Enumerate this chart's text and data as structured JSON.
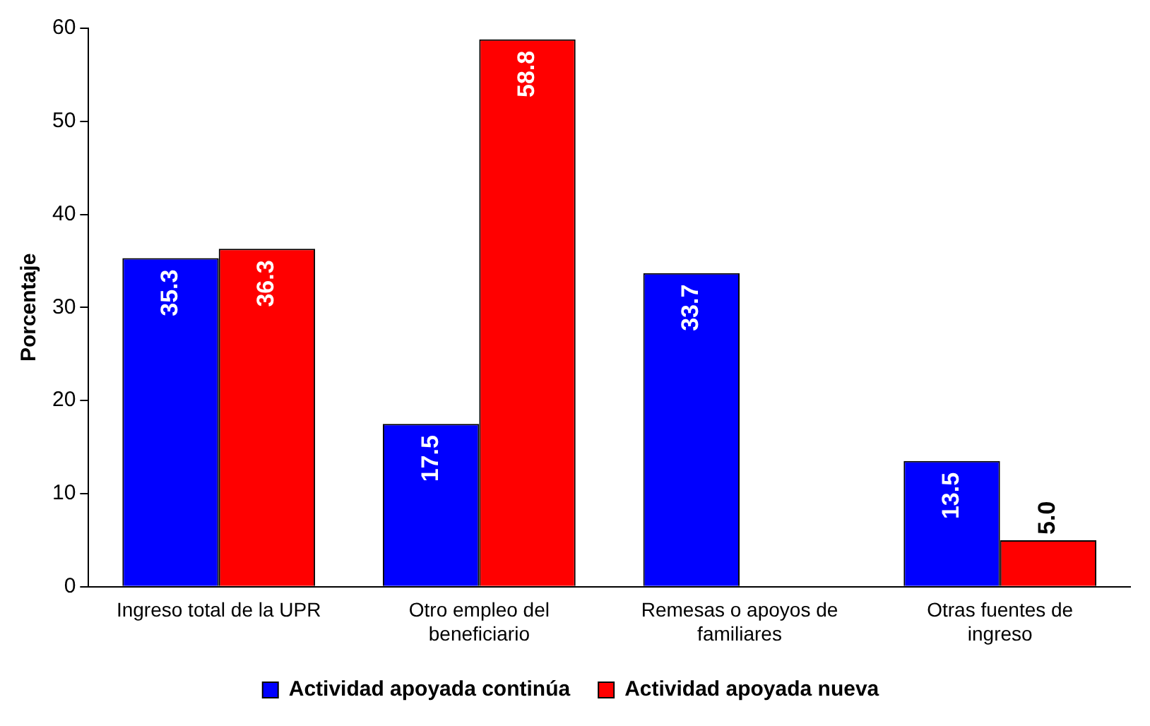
{
  "chart_data": {
    "type": "bar",
    "ylabel": "Porcentaje",
    "categories": [
      "Ingreso total de la UPR",
      "Otro empleo del beneficiario",
      "Remesas o apoyos de familiares",
      "Otras fuentes de ingreso"
    ],
    "series": [
      {
        "name": "Actividad apoyada continúa",
        "color": "#0000ff",
        "values": [
          35.3,
          17.5,
          33.7,
          13.5
        ],
        "value_labels": [
          "35.3",
          "17.5",
          "33.7",
          "13.5"
        ]
      },
      {
        "name": "Actividad apoyada nueva",
        "color": "#ff0000",
        "values": [
          36.3,
          58.8,
          null,
          5.0
        ],
        "value_labels": [
          "36.3",
          "58.8",
          null,
          "5.0"
        ]
      }
    ],
    "ylim": [
      0,
      60
    ],
    "yticks": [
      0,
      10,
      20,
      30,
      40,
      50,
      60
    ],
    "grid": false,
    "legend": "bottom"
  }
}
